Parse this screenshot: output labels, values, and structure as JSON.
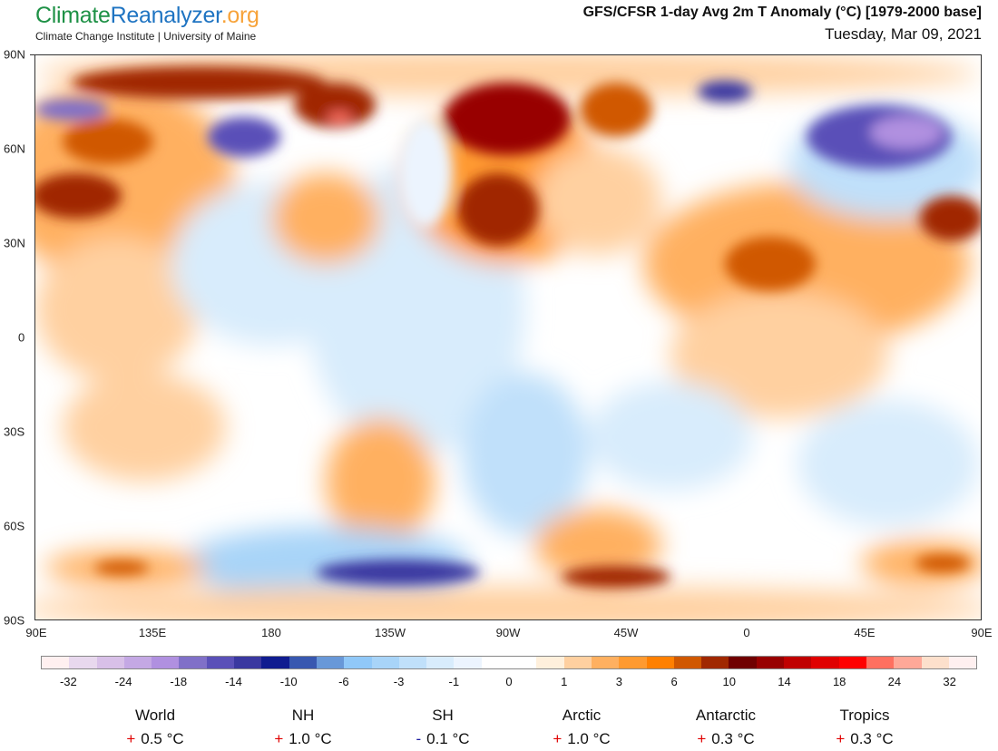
{
  "logo": {
    "part1": "Climate",
    "part2": "Reanalyzer",
    "part3": ".org"
  },
  "institute": "Climate Change Institute | University of Maine",
  "title": "GFS/CFSR 1-day Avg 2m T Anomaly (°C) [1979-2000 base]",
  "date": "Tuesday, Mar 09, 2021",
  "lat_labels": [
    "90N",
    "60N",
    "30N",
    "0",
    "30S",
    "60S",
    "90S"
  ],
  "lon_labels": [
    "90E",
    "135E",
    "180",
    "135W",
    "90W",
    "45W",
    "0",
    "45E",
    "90E"
  ],
  "colorbar": {
    "colors": [
      "#fff0f0",
      "#e8d8ee",
      "#d8c0e8",
      "#c4a8e4",
      "#b090e0",
      "#8070c8",
      "#5a50b8",
      "#3a38a0",
      "#101c90",
      "#3858b0",
      "#6898d8",
      "#90c8f8",
      "#a8d4f8",
      "#c0e0fa",
      "#d8ecfc",
      "#ecf4fe",
      "#ffffff",
      "#fff0dc",
      "#ffd0a0",
      "#ffb060",
      "#ff9a30",
      "#ff8000",
      "#d05800",
      "#a02800",
      "#700000",
      "#980000",
      "#c00000",
      "#e00000",
      "#ff0000",
      "#ff7060",
      "#ffa898",
      "#fde0cc",
      "#fff0f0"
    ],
    "labels": [
      "-32",
      "-24",
      "-18",
      "-14",
      "-10",
      "-6",
      "-3",
      "-1",
      "0",
      "1",
      "3",
      "6",
      "10",
      "14",
      "18",
      "24",
      "32"
    ]
  },
  "stats": [
    {
      "region": "World",
      "sign": "+",
      "value": "0.5 °C"
    },
    {
      "region": "NH",
      "sign": "+",
      "value": "1.0 °C"
    },
    {
      "region": "SH",
      "sign": "-",
      "value": "0.1 °C"
    },
    {
      "region": "Arctic",
      "sign": "+",
      "value": "1.0 °C"
    },
    {
      "region": "Antarctic",
      "sign": "+",
      "value": "0.3 °C"
    },
    {
      "region": "Tropics",
      "sign": "+",
      "value": "0.3 °C"
    }
  ],
  "sign_colors": {
    "+": "#e00000",
    "-": "#1a1aa0"
  }
}
